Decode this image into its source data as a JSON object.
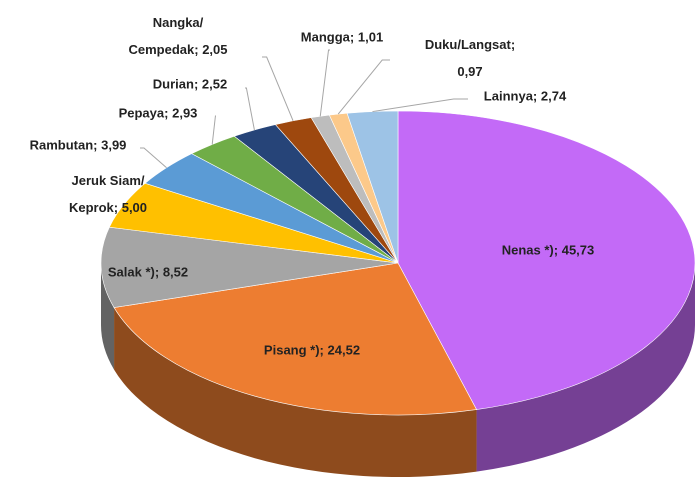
{
  "chart_data": {
    "type": "pie3d",
    "categories": [
      "Nenas *)",
      "Pisang *)",
      "Salak *)",
      "Jeruk Siam/ Keprok",
      "Rambutan",
      "Pepaya",
      "Durian",
      "Nangka/ Cempedak",
      "Mangga",
      "Duku/Langsat",
      "Lainnya"
    ],
    "values": [
      45.73,
      24.52,
      8.52,
      5.0,
      3.99,
      2.93,
      2.52,
      2.05,
      1.01,
      0.97,
      2.74
    ],
    "value_labels": [
      "45,73",
      "24,52",
      "8,52",
      "5,00",
      "3,99",
      "2,93",
      "2,52",
      "2,05",
      "1,01",
      "0,97",
      "2,74"
    ],
    "label_separator": ";",
    "colors": [
      "#c36af7",
      "#ed7d31",
      "#a5a5a5",
      "#ffc000",
      "#5b9bd5",
      "#70ad47",
      "#264478",
      "#9e480e",
      "#bdbdbd",
      "#fcc98a",
      "#9dc3e6"
    ]
  }
}
